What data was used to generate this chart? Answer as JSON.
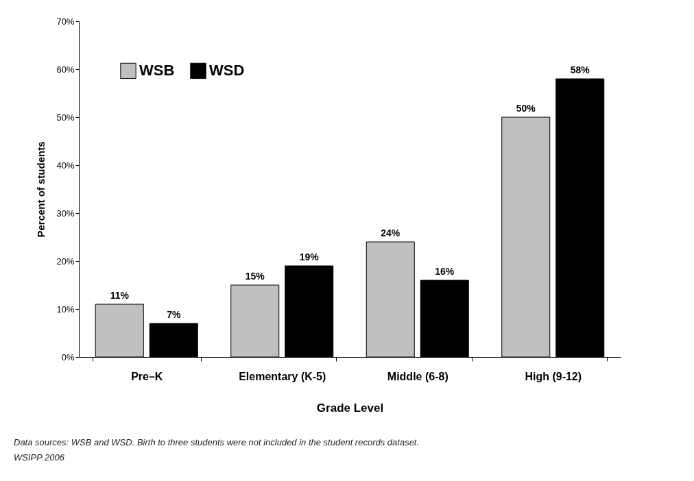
{
  "chart_data": {
    "type": "bar",
    "xlabel": "Grade Level",
    "ylabel": "Percent of students",
    "categories": [
      "Pre–K",
      "Elementary (K-5)",
      "Middle (6-8)",
      "High (9-12)"
    ],
    "series": [
      {
        "name": "WSB",
        "color": "#c0c0c0",
        "values": [
          11,
          15,
          24,
          50
        ],
        "value_labels": [
          "11%",
          "15%",
          "24%",
          "50%"
        ]
      },
      {
        "name": "WSD",
        "color": "#000000",
        "values": [
          7,
          19,
          16,
          58
        ],
        "value_labels": [
          "7%",
          "19%",
          "16%",
          "58%"
        ]
      }
    ],
    "ylim": [
      0,
      70
    ],
    "yticks": [
      {
        "value": 0,
        "label": "0%"
      },
      {
        "value": 10,
        "label": "10%"
      },
      {
        "value": 20,
        "label": "20%"
      },
      {
        "value": 30,
        "label": "30%"
      },
      {
        "value": 40,
        "label": "40%"
      },
      {
        "value": 50,
        "label": "50%"
      },
      {
        "value": 60,
        "label": "60%"
      },
      {
        "value": 70,
        "label": "70%"
      }
    ],
    "grid": false,
    "legend": "top left",
    "annotations": [
      "Data sources:  WSB and WSD.  Birth to three students were not included in the student records dataset.",
      "WSIPP 2006"
    ]
  }
}
